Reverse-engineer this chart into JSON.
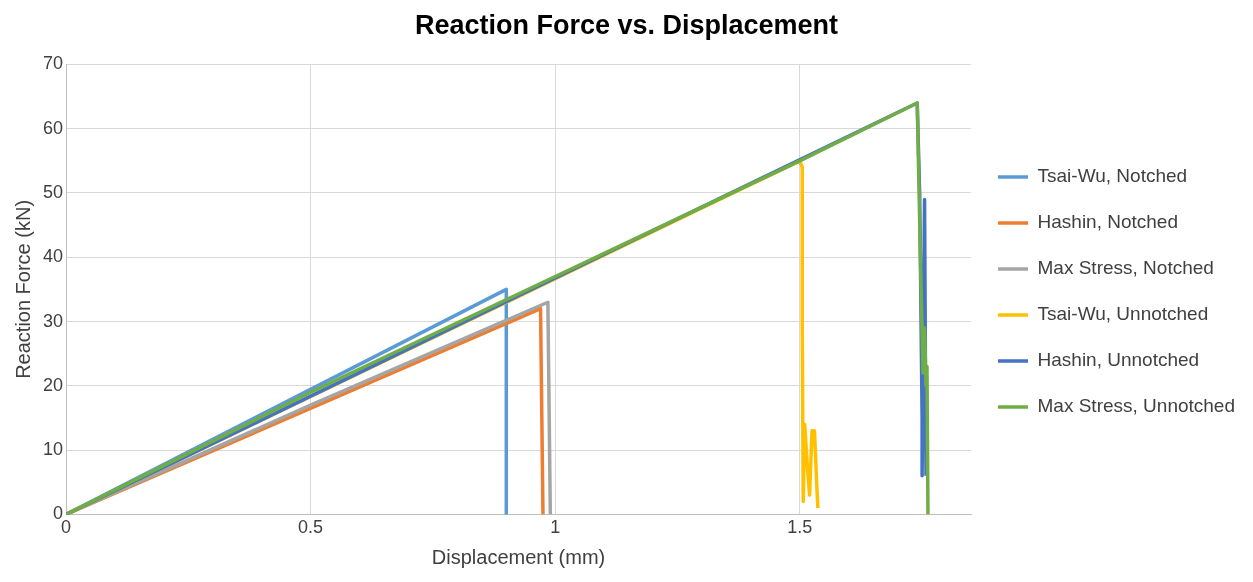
{
  "chart_data": {
    "type": "line",
    "title": "Reaction Force vs. Displacement",
    "xlabel": "Displacement (mm)",
    "ylabel": "Reaction Force (kN)",
    "xlim": [
      0,
      1.85
    ],
    "xticks": [
      {
        "value": 0,
        "label": "0"
      },
      {
        "value": 0.5,
        "label": "0.5"
      },
      {
        "value": 1,
        "label": "1"
      },
      {
        "value": 1.5,
        "label": "1.5"
      }
    ],
    "ylim": [
      0,
      70
    ],
    "yticks": [
      0,
      10,
      20,
      30,
      40,
      50,
      60,
      70
    ],
    "grid": true,
    "legend": "right",
    "marker": "none",
    "line_style": "solid",
    "series": [
      {
        "name": "Tsai-Wu, Notched",
        "color": "#5b9bd5",
        "x": [
          0,
          0.9,
          0.9
        ],
        "values": [
          0,
          35,
          0
        ]
      },
      {
        "name": "Hashin, Notched",
        "color": "#ed7d31",
        "x": [
          0,
          0.97,
          0.975
        ],
        "values": [
          0,
          32,
          0
        ]
      },
      {
        "name": "Max Stress, Notched",
        "color": "#a5a5a5",
        "x": [
          0,
          0.5,
          0.985,
          0.99
        ],
        "values": [
          0,
          17,
          33,
          0
        ]
      },
      {
        "name": "Tsai-Wu, Unnotched",
        "color": "#ffc000",
        "x": [
          0,
          1.5,
          1.505,
          1.505,
          1.507,
          1.51,
          1.515,
          1.52,
          1.525,
          1.53,
          1.535,
          1.537
        ],
        "values": [
          0,
          55,
          54,
          30,
          2,
          14,
          8,
          3,
          13,
          13,
          4,
          1
        ]
      },
      {
        "name": "Hashin, Unnotched",
        "color": "#4472c4",
        "x": [
          0,
          1.74,
          1.745,
          1.75,
          1.75,
          1.755,
          1.758
        ],
        "values": [
          0,
          64,
          50,
          15,
          6,
          49,
          6
        ]
      },
      {
        "name": "Max Stress, Unnotched",
        "color": "#70ad47",
        "x": [
          0,
          0.5,
          1,
          1.5,
          1.74,
          1.748,
          1.752,
          1.755,
          1.758,
          1.76,
          1.762
        ],
        "values": [
          0,
          19,
          37,
          55,
          64,
          35,
          22,
          29,
          20,
          23,
          0
        ]
      }
    ]
  }
}
